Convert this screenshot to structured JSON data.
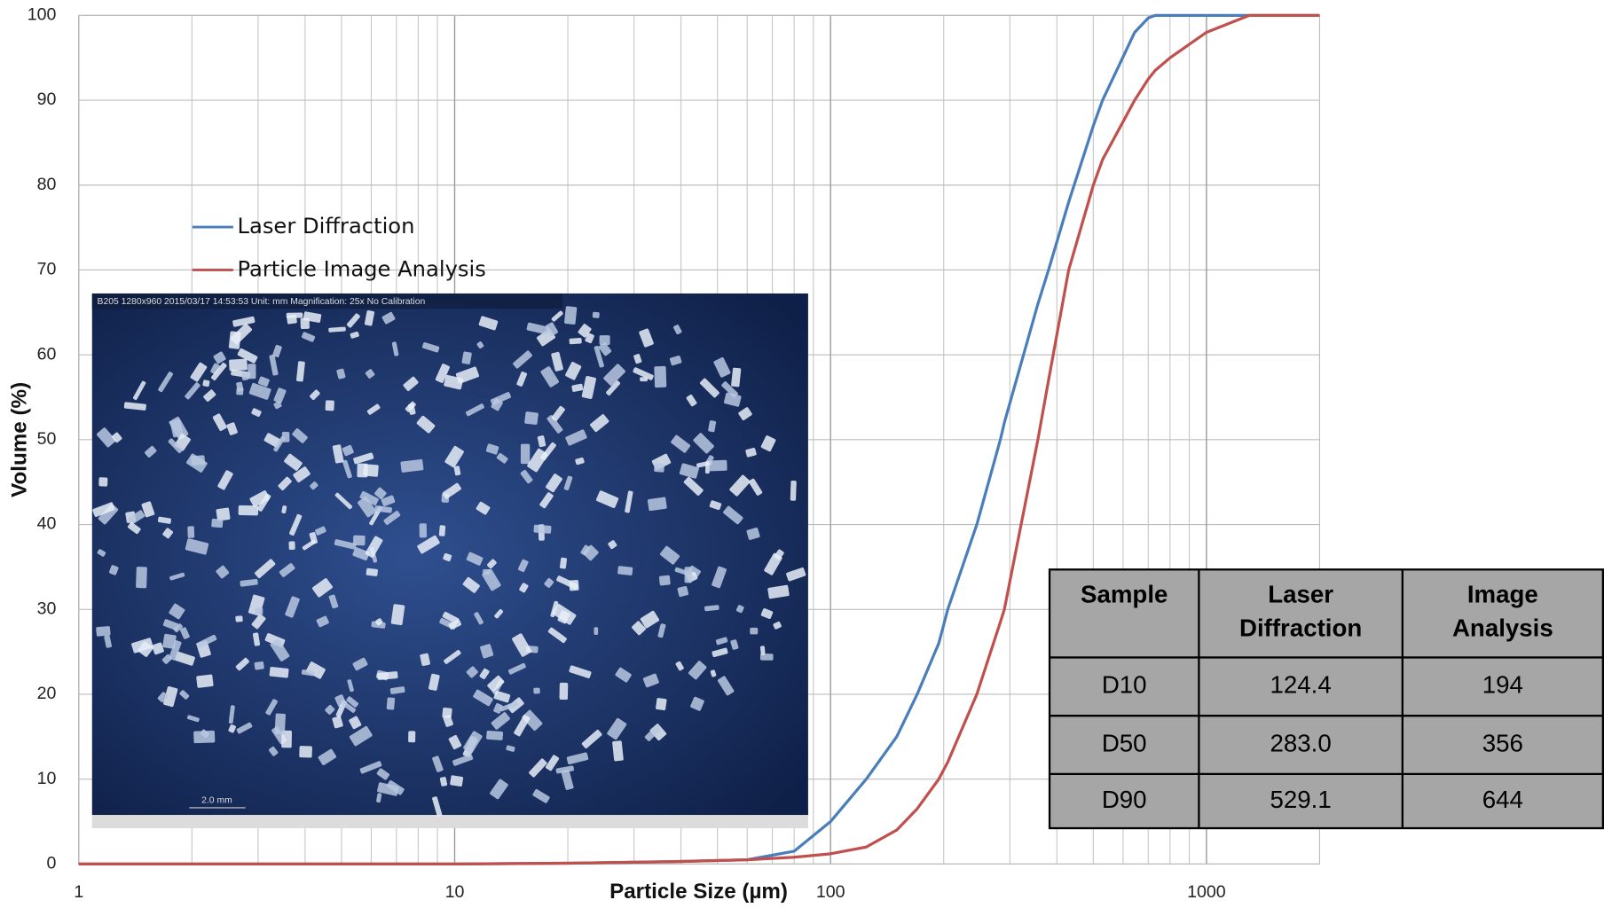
{
  "chart_data": {
    "type": "line",
    "x_label": "Particle Size (µm)",
    "y_label": "Volume (%)",
    "x": [
      1,
      10,
      20,
      30,
      40,
      60,
      80,
      100,
      124.4,
      150,
      170,
      194,
      205,
      245,
      283,
      290,
      356,
      380,
      430,
      500,
      529.1,
      644,
      700,
      730,
      800,
      1000,
      1300,
      2000
    ],
    "series": [
      {
        "name": "Laser Diffraction",
        "color": "#4a7ebb",
        "values": [
          0,
          0,
          0.1,
          0.2,
          0.3,
          0.5,
          1.5,
          5,
          10,
          15,
          20,
          26,
          30,
          40,
          50,
          52,
          66,
          70,
          78,
          87,
          90,
          98,
          99.7,
          100,
          100,
          100,
          100,
          100
        ]
      },
      {
        "name": "Particle Image Analysis",
        "color": "#c0504d",
        "values": [
          0,
          0,
          0.1,
          0.2,
          0.3,
          0.5,
          0.8,
          1.2,
          2,
          4,
          6.5,
          10,
          12,
          20,
          28.5,
          30,
          50,
          57,
          70,
          80,
          83,
          90,
          92.5,
          93.5,
          95,
          98,
          100,
          100
        ]
      }
    ],
    "xlim": [
      1,
      2000
    ],
    "ylim": [
      0,
      100
    ],
    "x_log": true,
    "xticks": [
      1,
      10,
      100,
      1000
    ],
    "x_minor_grid": [
      2,
      3,
      4,
      5,
      6,
      7,
      8,
      9,
      20,
      30,
      40,
      50,
      60,
      70,
      80,
      90,
      200,
      300,
      400,
      500,
      600,
      700,
      800,
      900
    ],
    "yticks": [
      0,
      10,
      20,
      30,
      40,
      50,
      60,
      70,
      80,
      90,
      100
    ],
    "grid": true,
    "annotations": [
      "B205  1280x960  2015/03/17 14:53:53  Unit: mm  Magnification: 25x  No Calibration",
      "2.0 mm"
    ]
  },
  "table": {
    "header": [
      "Sample",
      "Laser Diffraction",
      "Image Analysis"
    ],
    "rows": [
      [
        "D10",
        "124.4",
        "194"
      ],
      [
        "D50",
        "283.0",
        "356"
      ],
      [
        "D90",
        "529.1",
        "644"
      ]
    ]
  }
}
